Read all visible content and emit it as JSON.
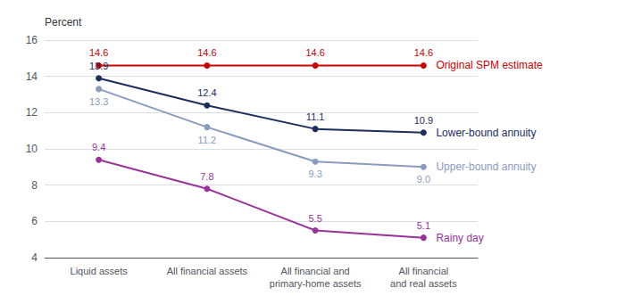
{
  "chart_data": {
    "type": "line",
    "ylabel": "Percent",
    "categories": [
      "Liquid assets",
      "All financial assets",
      "All financial and\nprimary-home assets",
      "All financial\nand real assets"
    ],
    "series": [
      {
        "name": "Original SPM estimate",
        "color": "#cc0000",
        "values": [
          14.6,
          14.6,
          14.6,
          14.6
        ]
      },
      {
        "name": "Lower-bound annuity",
        "color": "#1c2d5e",
        "values": [
          13.9,
          12.4,
          11.1,
          10.9
        ]
      },
      {
        "name": "Upper-bound annuity",
        "color": "#8a9bbf",
        "values": [
          13.3,
          11.2,
          9.3,
          9.0
        ],
        "value_labels": [
          "13.3",
          "11.2",
          "9.3",
          "9.0"
        ]
      },
      {
        "name": "Rainy day",
        "color": "#993399",
        "values": [
          9.4,
          7.8,
          5.5,
          5.1
        ]
      }
    ],
    "ylim": [
      4,
      16
    ],
    "yticks": [
      4,
      6,
      8,
      10,
      12,
      14,
      16
    ],
    "grid": true,
    "data_labels": true,
    "marker": "circle",
    "line_style": "solid"
  }
}
